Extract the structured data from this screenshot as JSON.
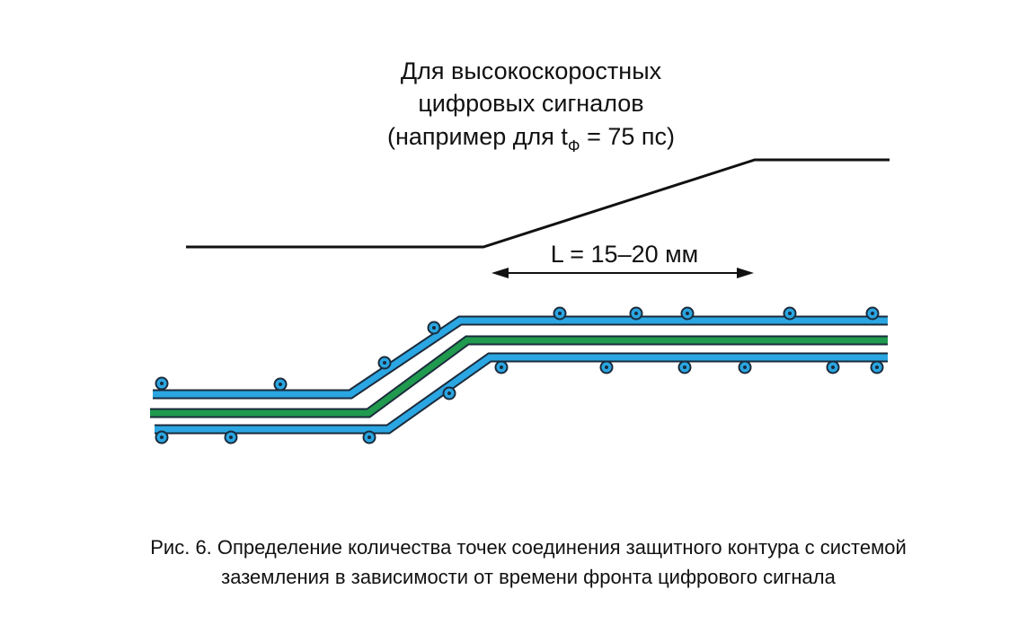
{
  "annotation": {
    "lines": [
      "Для высокоскоростных",
      "цифровых сигналов"
    ],
    "example_prefix": "(например для t",
    "example_subscript": "Ф",
    "example_suffix": " = 75 пс)"
  },
  "dimension_label": "L = 15–20 мм",
  "caption": [
    "Рис. 6. Определение количества точек соединения защитного контура с системой",
    "заземления в зависимости от времени фронта цифрового сигнала"
  ]
}
